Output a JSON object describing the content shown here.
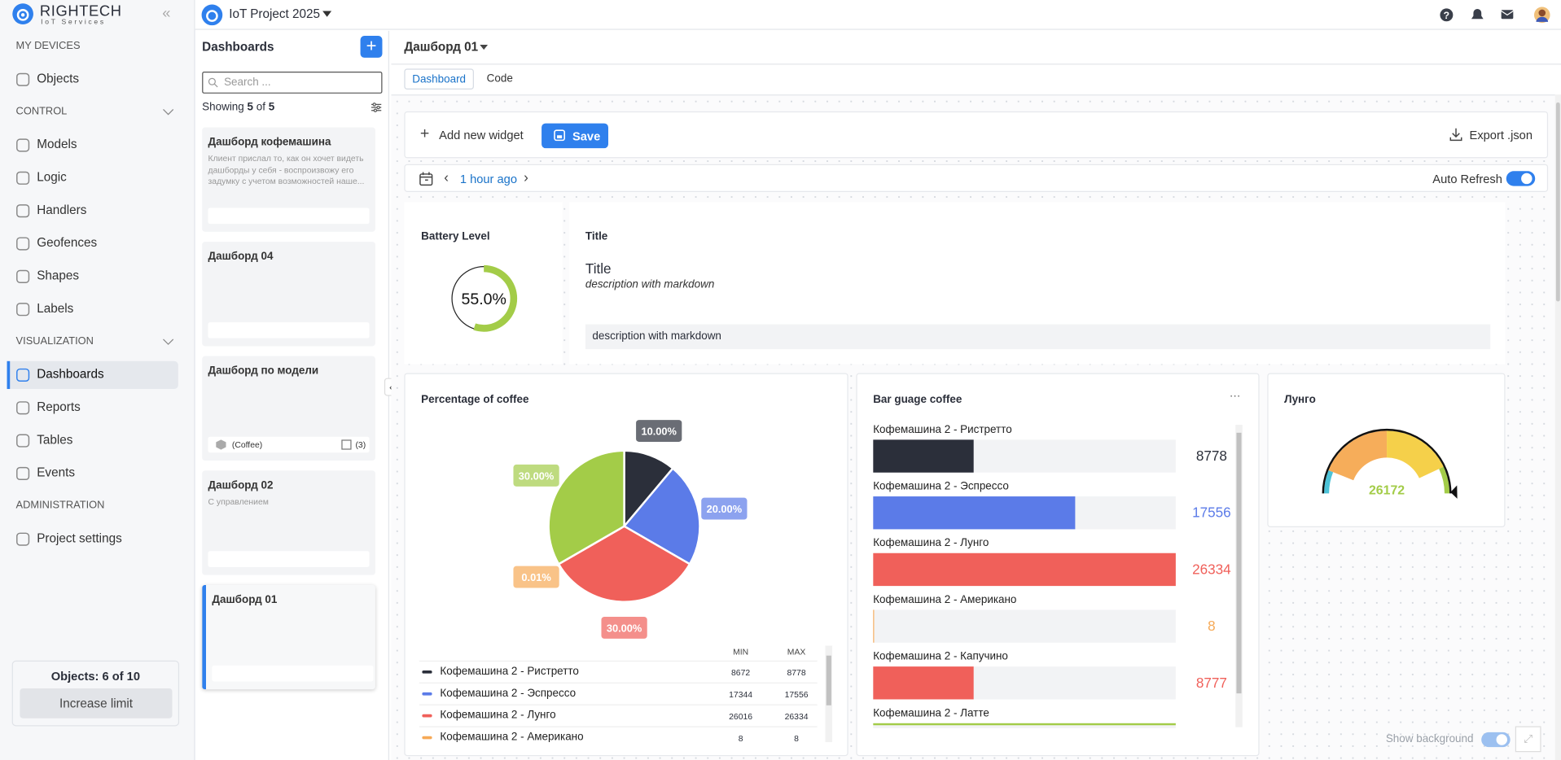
{
  "sidebar": {
    "logo": "RIGHTECH",
    "logo_subtitle": "IoT Services",
    "sections": [
      {
        "title": "MY DEVICES",
        "items": [
          {
            "label": "Objects"
          }
        ]
      },
      {
        "title": "CONTROL",
        "collapsible": true,
        "items": [
          {
            "label": "Models"
          },
          {
            "label": "Logic"
          },
          {
            "label": "Handlers"
          },
          {
            "label": "Geofences"
          },
          {
            "label": "Shapes"
          },
          {
            "label": "Labels"
          }
        ]
      },
      {
        "title": "VISUALIZATION",
        "collapsible": true,
        "items": [
          {
            "label": "Dashboards",
            "active": true
          },
          {
            "label": "Reports"
          },
          {
            "label": "Tables"
          },
          {
            "label": "Events"
          }
        ]
      },
      {
        "title": "ADMINISTRATION",
        "items": [
          {
            "label": "Project settings"
          }
        ]
      }
    ],
    "objects_limit": "Objects: 6 of 10",
    "increase_limit": "Increase limit"
  },
  "topbar": {
    "project": "IoT Project 2025"
  },
  "dashboards_panel": {
    "title": "Dashboards",
    "search_placeholder": "Search ...",
    "showing": "Showing",
    "shown": 5,
    "of": "of",
    "total": 5,
    "cards": [
      {
        "title": "Дашборд кофемашина",
        "description": "Клиент прислал то, как он хочет видеть дашборды у себя - воспроизвожу его задумку с учетом возможностей наше..."
      },
      {
        "title": "Дашборд 04"
      },
      {
        "title": "Дашборд по модели",
        "model": "(Coffee)",
        "objects": "(3)"
      },
      {
        "title": "Дашборд 02",
        "description": "С управлением"
      },
      {
        "title": "Дашборд 01",
        "active": true
      }
    ]
  },
  "dashboard": {
    "title": "Дашборд 01",
    "tabs": [
      {
        "label": "Dashboard",
        "active": true
      },
      {
        "label": "Code"
      }
    ],
    "add_widget": "Add new widget",
    "save": "Save",
    "export": "Export .json",
    "time": "1 hour ago",
    "auto_refresh": "Auto Refresh",
    "show_background": "Show background"
  },
  "widgets": {
    "battery": {
      "title": "Battery Level",
      "value": 55,
      "value_label": "55.0%",
      "color": "#a3cc48"
    },
    "markdown": {
      "title": "Title",
      "heading": "Title",
      "description": "description with markdown",
      "block": "description with markdown"
    },
    "pie": {
      "title": "Percentage of coffee",
      "slices": [
        {
          "value": 10,
          "label": "10.00%",
          "color": "#2b2f3a"
        },
        {
          "value": 20,
          "label": "20.00%",
          "color": "#5b7be8"
        },
        {
          "value": 30,
          "label": "30.00%",
          "color": "#f0605a"
        },
        {
          "value": 0.01,
          "label": "0.01%",
          "color": "#f6a956"
        },
        {
          "value": 30,
          "label": "30.00%",
          "color": "#a3cc48"
        }
      ],
      "table": {
        "columns": [
          "MIN",
          "MAX"
        ],
        "rows": [
          {
            "name": "Кофемашина 2 - Ристретто",
            "color": "#2b2f3a",
            "min": 8672,
            "max": 8778
          },
          {
            "name": "Кофемашина 2 - Эспрессо",
            "color": "#5b7be8",
            "min": 17344,
            "max": 17556
          },
          {
            "name": "Кофемашина 2 - Лунго",
            "color": "#f0605a",
            "min": 26016,
            "max": 26334
          },
          {
            "name": "Кофемашина 2 - Американо",
            "color": "#f6a956",
            "min": 8,
            "max": 8
          }
        ]
      }
    },
    "bar_gauge": {
      "title": "Bar guage coffee",
      "max": 26334,
      "items": [
        {
          "name": "Кофемашина 2 - Ристретто",
          "value": 8778,
          "color": "#2b2f3a"
        },
        {
          "name": "Кофемашина 2 - Эспрессо",
          "value": 17556,
          "color": "#5b7be8"
        },
        {
          "name": "Кофемашина 2 - Лунго",
          "value": 26334,
          "color": "#f0605a"
        },
        {
          "name": "Кофемашина 2 - Американо",
          "value": 8,
          "color": "#f6a956"
        },
        {
          "name": "Кофемашина 2 - Капучино",
          "value": 8777,
          "color": "#f0605a"
        },
        {
          "name": "Кофемашина 2 - Латте",
          "value": null,
          "color": "#a3cc48"
        }
      ]
    },
    "gauge": {
      "title": "Лунго",
      "value": 26172,
      "range": [
        0,
        26334
      ],
      "color": "#a3cc48"
    }
  }
}
